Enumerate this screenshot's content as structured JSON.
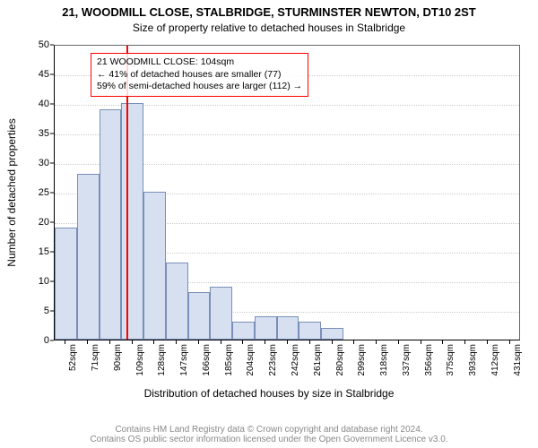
{
  "title_main": "21, WOODMILL CLOSE, STALBRIDGE, STURMINSTER NEWTON, DT10 2ST",
  "title_sub": "Size of property relative to detached houses in Stalbridge",
  "ylabel": "Number of detached properties",
  "xlabel": "Distribution of detached houses by size in Stalbridge",
  "footer_line1": "Contains HM Land Registry data © Crown copyright and database right 2024.",
  "footer_line2": "Contains OS public sector information licensed under the Open Government Licence v3.0.",
  "chart": {
    "type": "histogram",
    "ylim": [
      0,
      50
    ],
    "ytick_step": 5,
    "bar_fill": "#d6e0f0",
    "bar_border": "#7a8fb8",
    "grid_color": "#cccccc",
    "background": "#ffffff",
    "ref_line_color": "#ff0000",
    "ref_line_value": 104,
    "annotation_border": "#ff0000",
    "categories": [
      "52sqm",
      "71sqm",
      "90sqm",
      "109sqm",
      "128sqm",
      "147sqm",
      "166sqm",
      "185sqm",
      "204sqm",
      "223sqm",
      "242sqm",
      "261sqm",
      "280sqm",
      "299sqm",
      "318sqm",
      "337sqm",
      "356sqm",
      "375sqm",
      "393sqm",
      "412sqm",
      "431sqm"
    ],
    "values": [
      19,
      28,
      39,
      40,
      25,
      13,
      8,
      9,
      3,
      4,
      4,
      3,
      2,
      0,
      0,
      0,
      0,
      0,
      0,
      0,
      0
    ]
  },
  "annotation": {
    "line1": "21 WOODMILL CLOSE: 104sqm",
    "line2": "← 41% of detached houses are smaller (77)",
    "line3": "59% of semi-detached houses are larger (112) →"
  },
  "footer_color": "#888888"
}
